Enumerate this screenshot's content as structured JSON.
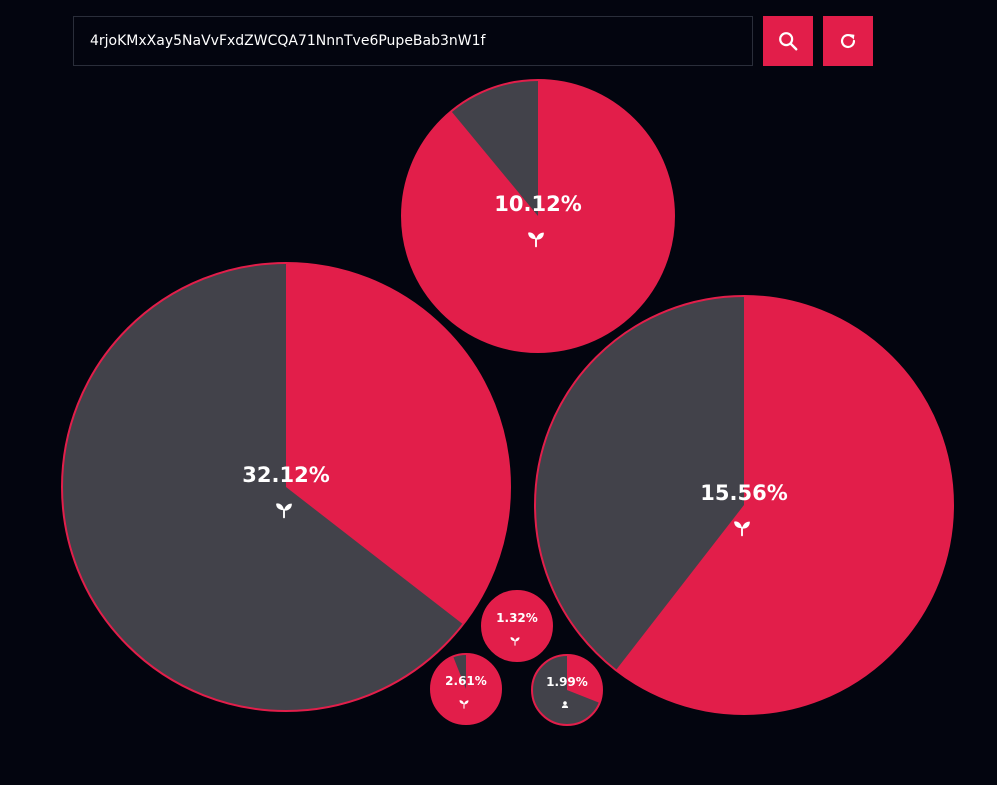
{
  "search": {
    "value": "4rjoKMxXay5NaVvFxdZWCQA71NnnTve6PupeBab3nW1f",
    "search_icon": "search-icon",
    "refresh_icon": "refresh-icon"
  },
  "colors": {
    "background": "#03050f",
    "accent": "#e21e4a",
    "slice_rest": "#42424a",
    "text": "#ffffff"
  },
  "bubbles": [
    {
      "label": "10.12%",
      "icon": "sprout-icon",
      "accent_fraction": 0.89
    },
    {
      "label": "32.12%",
      "icon": "sprout-icon",
      "accent_fraction": 0.355
    },
    {
      "label": "15.56%",
      "icon": "sprout-icon",
      "accent_fraction": 0.605
    },
    {
      "label": "1.32%",
      "icon": "sprout-icon",
      "accent_fraction": 1.0
    },
    {
      "label": "2.61%",
      "icon": "sprout-icon",
      "accent_fraction": 0.94
    },
    {
      "label": "1.99%",
      "icon": "user-icon",
      "accent_fraction": 0.31
    }
  ]
}
